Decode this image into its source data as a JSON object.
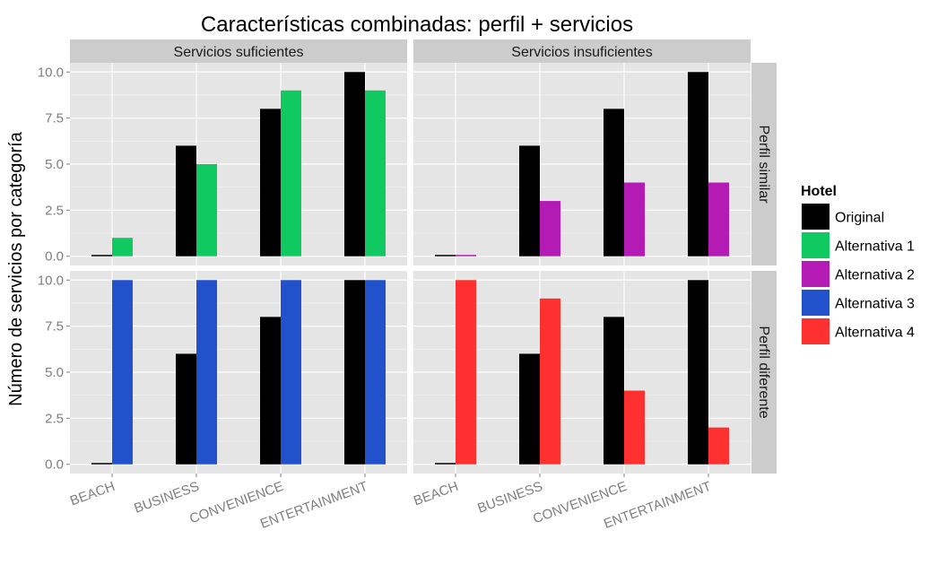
{
  "chart_data": {
    "type": "bar",
    "title": "Características combinadas: perfil + servicios",
    "xlabel": "",
    "ylabel": "Número de servicios por categoría",
    "ylim": [
      -0.5,
      10.5
    ],
    "yticks": [
      "0.0",
      "2.5",
      "5.0",
      "7.5",
      "10.0"
    ],
    "ytick_values": [
      0,
      2.5,
      5,
      7.5,
      10
    ],
    "categories": [
      "BEACH",
      "BUSINESS",
      "CONVENIENCE",
      "ENTERTAINMENT"
    ],
    "grid": true,
    "legend_placement": "right",
    "col_facets": [
      "Servicios suficientes",
      "Servicios insuficientes"
    ],
    "row_facets": [
      "Perfil similar",
      "Perfil diferente"
    ],
    "legend": {
      "title": "Hotel",
      "items": [
        {
          "label": "Original",
          "color": "#000000"
        },
        {
          "label": "Alternativa 1",
          "color": "#10c960"
        },
        {
          "label": "Alternativa 2",
          "color": "#b41bb4"
        },
        {
          "label": "Alternativa 3",
          "color": "#2151cb"
        },
        {
          "label": "Alternativa 4",
          "color": "#ff3030"
        }
      ]
    },
    "panels": [
      {
        "row": 0,
        "col": 0,
        "series": [
          {
            "name": "Original",
            "color": "#000000",
            "values": [
              0.05,
              6,
              8,
              10
            ]
          },
          {
            "name": "Alternativa 1",
            "color": "#10c960",
            "values": [
              1,
              5,
              9,
              9
            ]
          }
        ]
      },
      {
        "row": 0,
        "col": 1,
        "series": [
          {
            "name": "Original",
            "color": "#000000",
            "values": [
              0.05,
              6,
              8,
              10
            ]
          },
          {
            "name": "Alternativa 2",
            "color": "#b41bb4",
            "values": [
              0.05,
              3,
              4,
              4
            ]
          }
        ]
      },
      {
        "row": 1,
        "col": 0,
        "series": [
          {
            "name": "Original",
            "color": "#000000",
            "values": [
              0.05,
              6,
              8,
              10
            ]
          },
          {
            "name": "Alternativa 3",
            "color": "#2151cb",
            "values": [
              10,
              10,
              10,
              10
            ]
          }
        ]
      },
      {
        "row": 1,
        "col": 1,
        "series": [
          {
            "name": "Original",
            "color": "#000000",
            "values": [
              0.05,
              6,
              8,
              10
            ]
          },
          {
            "name": "Alternativa 4",
            "color": "#ff3030",
            "values": [
              10,
              9,
              4,
              2
            ]
          }
        ]
      }
    ]
  }
}
